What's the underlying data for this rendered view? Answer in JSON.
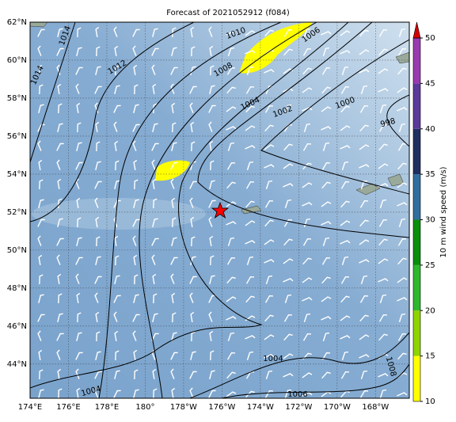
{
  "title": "Forecast of 2021052912 (f084)",
  "lon_labels": [
    "174°E",
    "176°E",
    "178°E",
    "180°",
    "178°W",
    "176°W",
    "174°W",
    "172°W",
    "170°W",
    "168°W"
  ],
  "lat_labels": [
    "62°N",
    "60°N",
    "58°N",
    "56°N",
    "54°N",
    "52°N",
    "50°N",
    "48°N",
    "46°N",
    "44°N"
  ],
  "contour_labels": [
    "1014",
    "1014",
    "1012",
    "1010",
    "1008",
    "1006",
    "1004",
    "1002",
    "1000",
    "998",
    "1004",
    "1004",
    "1006",
    "1008"
  ],
  "colorbar": {
    "label": "10 m wind speed (m/s)",
    "lim": [
      10,
      50
    ],
    "ticks": [
      10,
      15,
      20,
      25,
      30,
      35,
      40,
      45,
      50
    ],
    "colors": [
      "#ffff00",
      "#8fd400",
      "#2db82d",
      "#0a8f0a",
      "#2f6f9f",
      "#1f2f5f",
      "#5a3a9a",
      "#9a3ab0"
    ],
    "extend_color": "#d40000"
  }
}
